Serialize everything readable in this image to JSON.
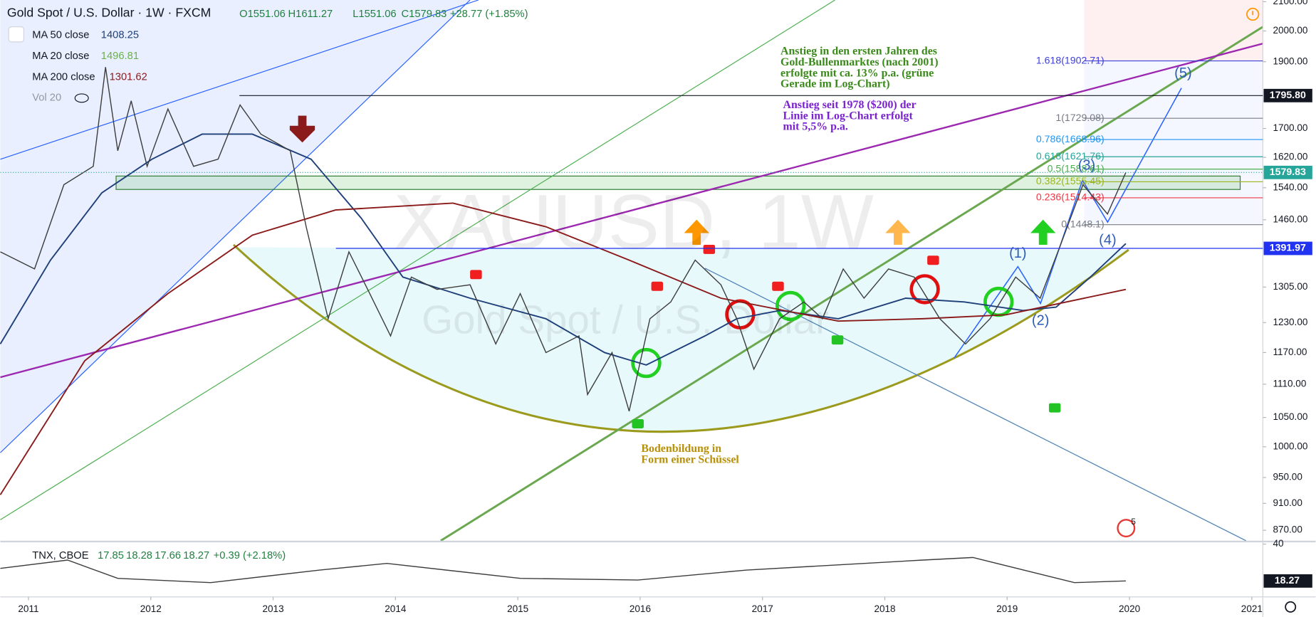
{
  "chart_data": {
    "type": "line",
    "title": "Gold Spot / U.S. Dollar · 1W · FXCM",
    "ohlc": [
      "O1551.06",
      "H1611.27",
      "L1551.06",
      "C1579.83"
    ],
    "change": "+28.77 (+1.85%)",
    "volume_label": "Vol 20",
    "watermark": [
      "XAUUSD, 1W",
      "Gold Spot / U.S. Dollar"
    ],
    "log_scale": true,
    "grid": false,
    "xlim": [
      2010.77,
      2021.09
    ],
    "xticks": [
      2011,
      2012,
      2013,
      2014,
      2015,
      2016,
      2017,
      2018,
      2019,
      2020,
      2021
    ],
    "ylim": [
      855,
      2106
    ],
    "yticks": [
      {
        "value": 870,
        "label": "870.00"
      },
      {
        "value": 910,
        "label": "910.00"
      },
      {
        "value": 950,
        "label": "950.00"
      },
      {
        "value": 1000,
        "label": "1000.00"
      },
      {
        "value": 1050,
        "label": "1050.00"
      },
      {
        "value": 1110,
        "label": "1110.00"
      },
      {
        "value": 1170,
        "label": "1170.00"
      },
      {
        "value": 1230,
        "label": "1230.00"
      },
      {
        "value": 1305,
        "label": "1305.00"
      },
      {
        "value": 1460,
        "label": "1460.00"
      },
      {
        "value": 1540,
        "label": "1540.00"
      },
      {
        "value": 1620,
        "label": "1620.00"
      },
      {
        "value": 1700,
        "label": "1700.00"
      },
      {
        "value": 1900,
        "label": "1900.00"
      },
      {
        "value": 2000,
        "label": "2000.00"
      },
      {
        "value": 2100,
        "label": "2100.00"
      }
    ],
    "price": {
      "color": "#3d3d3d",
      "x": [
        2010.77,
        2011.05,
        2011.29,
        2011.53,
        2011.63,
        2011.73,
        2011.84,
        2011.97,
        2012.14,
        2012.35,
        2012.55,
        2012.73,
        2012.9,
        2013.14,
        2013.27,
        2013.45,
        2013.62,
        2013.79,
        2013.96,
        2014.13,
        2014.34,
        2014.61,
        2014.82,
        2015.02,
        2015.23,
        2015.5,
        2015.57,
        2015.77,
        2015.91,
        2016.08,
        2016.25,
        2016.45,
        2016.66,
        2016.79,
        2016.93,
        2017.14,
        2017.34,
        2017.49,
        2017.66,
        2017.83,
        2018.03,
        2018.24,
        2018.45,
        2018.66,
        2018.86,
        2019.07,
        2019.27,
        2019.44,
        2019.62,
        2019.82,
        2019.97
      ],
      "values": [
        1384,
        1345,
        1548,
        1596,
        1883,
        1638,
        1780,
        1596,
        1756,
        1596,
        1615,
        1768,
        1684,
        1638,
        1443,
        1238,
        1384,
        1291,
        1203,
        1327,
        1300,
        1310,
        1187,
        1291,
        1170,
        1203,
        1091,
        1170,
        1061,
        1238,
        1273,
        1365,
        1310,
        1238,
        1138,
        1238,
        1273,
        1238,
        1345,
        1281,
        1345,
        1327,
        1238,
        1187,
        1238,
        1327,
        1281,
        1403,
        1548,
        1474,
        1579.83
      ],
      "label_color": "#26a69a"
    },
    "series": [
      {
        "name": "MA 50 close",
        "value": 1408.25,
        "color": "#1e3f7a",
        "x": [
          2010.77,
          2011.18,
          2011.6,
          2012.01,
          2012.42,
          2012.83,
          2013.31,
          2013.72,
          2014.06,
          2014.61,
          2015.23,
          2015.71,
          2016.05,
          2016.53,
          2016.79,
          2017.14,
          2017.62,
          2018.17,
          2018.65,
          2019.13,
          2019.4,
          2019.68,
          2019.97
        ],
        "values": [
          1187,
          1365,
          1527,
          1615,
          1684,
          1684,
          1615,
          1464,
          1327,
          1281,
          1238,
          1170,
          1146,
          1203,
          1238,
          1255,
          1238,
          1281,
          1273,
          1255,
          1262,
          1327,
          1403
        ]
      },
      {
        "name": "MA 20 close",
        "value": 1496.81,
        "color": "#6ab04c"
      },
      {
        "name": "MA 200 close",
        "value": 1301.62,
        "color": "#8b1a1a",
        "x": [
          2010.77,
          2011.46,
          2012.14,
          2012.83,
          2013.51,
          2014.47,
          2015.23,
          2015.91,
          2016.66,
          2017.62,
          2018.31,
          2018.99,
          2019.97
        ],
        "values": [
          923,
          1154,
          1291,
          1423,
          1484,
          1501,
          1443,
          1365,
          1281,
          1233,
          1238,
          1246,
          1300
        ]
      }
    ],
    "price_lines": [
      {
        "value": 1795.8,
        "label": "1795.80",
        "color": "#131722"
      },
      {
        "value": 1391.97,
        "label": "1391.97",
        "color": "#2132f0"
      }
    ],
    "fibonacci": [
      {
        "value": 1902.71,
        "label": "1.618(1902.71)",
        "color": "#3f3fd6"
      },
      {
        "value": 1729.08,
        "label": "1(1729.08)",
        "color": "#787b86"
      },
      {
        "value": 1668.96,
        "label": "0.786(1668.96)",
        "color": "#2196f3"
      },
      {
        "value": 1621.76,
        "label": "0.618(1621.76)",
        "color": "#26a69a"
      },
      {
        "value": 1588.61,
        "label": "0.5(1588.61)",
        "color": "#4caf50"
      },
      {
        "value": 1555.45,
        "label": "0.382(1555.45)",
        "color": "#9cb51c"
      },
      {
        "value": 1514.43,
        "label": "0.236(1514.43)",
        "color": "#f23645"
      },
      {
        "value": 1448.1,
        "label": "0(1448.1)",
        "color": "#787b86"
      }
    ],
    "waves": [
      "(1)",
      "(2)",
      "(3)",
      "(4)",
      "(5)"
    ],
    "annotations": [
      {
        "lines": [
          "Anstieg in den ersten Jahren des",
          "Gold-Bullenmarktes (nach 2001)",
          "erfolgte mit ca. 13% p.a. (grüne",
          "Gerade im Log-Chart)"
        ]
      },
      {
        "lines": [
          "Anstieg seit 1978 ($200) der",
          "Linie im Log-Chart erfolgt",
          "mit 5,5% p.a."
        ]
      },
      {
        "lines": [
          "Bodenbildung in",
          "Form einer Schüssel"
        ]
      }
    ],
    "event_badge": "5",
    "lower_pane": {
      "title": "TNX, CBOE",
      "ohlc": [
        17.85,
        18.28,
        17.66,
        18.27
      ],
      "change": "+0.39 (+2.18%)",
      "color": "#3d3d3d",
      "ylim": [
        8.9,
        40.5
      ],
      "yticks": [
        40
      ],
      "x": [
        2010.77,
        2011.32,
        2011.73,
        2012.49,
        2013.38,
        2013.93,
        2015.02,
        2015.98,
        2016.87,
        2018.31,
        2018.72,
        2019.55,
        2019.97
      ],
      "values": [
        25.7,
        30.6,
        19.8,
        17.3,
        24.7,
        28.6,
        19.8,
        18.8,
        24.7,
        30.6,
        32.1,
        17.3,
        18.27
      ]
    }
  }
}
